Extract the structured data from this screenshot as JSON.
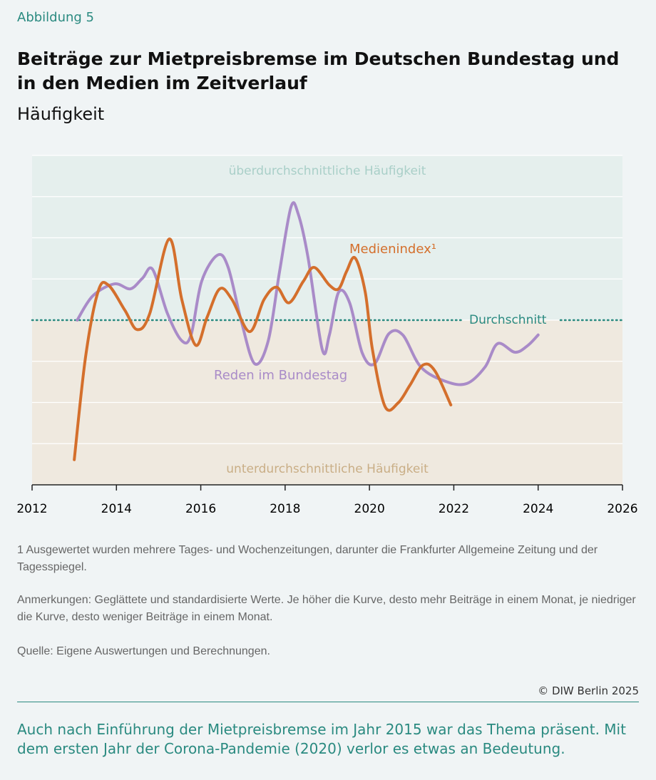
{
  "header": "Abbildung 5",
  "chart_data": {
    "type": "line",
    "title": "Beiträge zur Mietpreisbremse im Deutschen Bundestag und in den Medien im Zeitverlauf",
    "subtitle": "Häufigkeit",
    "xlim": [
      2012,
      2026
    ],
    "xticks": [
      2012,
      2014,
      2016,
      2018,
      2020,
      2022,
      2024,
      2026
    ],
    "ylim": [
      -4,
      4
    ],
    "yticks": [
      -4,
      -3,
      -2,
      -1,
      0,
      1,
      2,
      3,
      4
    ],
    "show_ytick_labels": false,
    "grid": true,
    "mean": 0,
    "mean_label": "Durchschnitt",
    "mean_color": "#2a8a80",
    "above_label": "überdurchschnittliche Häufigkeit",
    "above_color": "#e5efed",
    "below_label": "unterdurchschnittliche Häufigkeit",
    "below_color": "#efe9df",
    "series": [
      {
        "name": "Reden im Bundestag",
        "color": "#a98bc8",
        "x": [
          2013.07,
          2013.44,
          2013.95,
          2014.33,
          2014.62,
          2014.86,
          2015.21,
          2015.55,
          2015.77,
          2016.02,
          2016.4,
          2016.65,
          2016.96,
          2017.28,
          2017.6,
          2017.87,
          2018.14,
          2018.31,
          2018.54,
          2018.88,
          2019.05,
          2019.27,
          2019.53,
          2019.83,
          2020.12,
          2020.46,
          2020.79,
          2021.22,
          2021.81,
          2022.31,
          2022.74,
          2023.04,
          2023.45,
          2023.75,
          2024.0
        ],
        "values": [
          0,
          0.59,
          0.88,
          0.76,
          1.02,
          1.23,
          0.16,
          -0.5,
          -0.36,
          0.94,
          1.58,
          1.28,
          -0.02,
          -1.06,
          -0.5,
          1.19,
          2.75,
          2.58,
          1.54,
          -0.71,
          -0.36,
          0.68,
          0.42,
          -0.8,
          -1.06,
          -0.33,
          -0.36,
          -1.14,
          -1.49,
          -1.54,
          -1.14,
          -0.57,
          -0.78,
          -0.62,
          -0.36
        ]
      },
      {
        "name": "Medienindex¹",
        "color": "#d46f2c",
        "x": [
          2013.0,
          2013.27,
          2013.57,
          2013.81,
          2014.2,
          2014.49,
          2014.79,
          2015.25,
          2015.55,
          2015.88,
          2016.15,
          2016.45,
          2016.74,
          2017.16,
          2017.5,
          2017.8,
          2018.09,
          2018.43,
          2018.69,
          2019.05,
          2019.27,
          2019.46,
          2019.66,
          2019.9,
          2020.07,
          2020.37,
          2020.68,
          2020.96,
          2021.27,
          2021.55,
          2021.93
        ],
        "values": [
          -3.39,
          -0.88,
          0.71,
          0.85,
          0.24,
          -0.23,
          0.16,
          1.97,
          0.5,
          -0.61,
          0.07,
          0.76,
          0.5,
          -0.28,
          0.5,
          0.8,
          0.42,
          0.94,
          1.28,
          0.85,
          0.76,
          1.19,
          1.51,
          0.68,
          -0.71,
          -2.1,
          -2.01,
          -1.58,
          -1.09,
          -1.23,
          -2.06
        ]
      }
    ]
  },
  "notes": {
    "footnote": "1  Ausgewertet wurden mehrere Tages- und Wochenzeitungen, darunter die Frankfurter Allgemeine Zeitung und der Tagesspiegel.",
    "remarks": "Anmerkungen: Geglättete und standardisierte Werte. Je höher die Kurve, desto mehr Beiträge in einem Monat, je niedriger die Kurve, desto weniger Beiträge in einem Monat.",
    "source": "Quelle: Eigene Auswertungen und Berechnungen."
  },
  "copyright": "© DIW Berlin 2025",
  "caption": "Auch nach Einführung der Mietpreisbremse im Jahr 2015 war das Thema präsent. Mit dem ersten Jahr der Corona-Pandemie (2020) verlor es etwas an Bedeutung."
}
